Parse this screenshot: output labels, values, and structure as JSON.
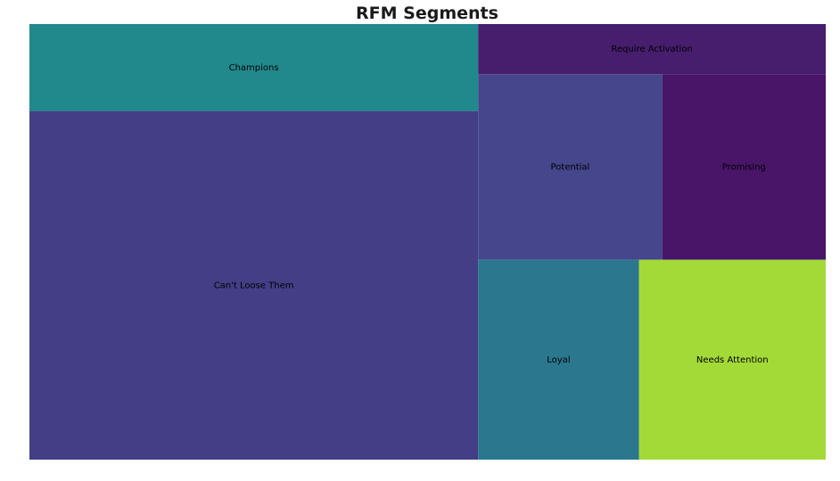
{
  "chart_data": {
    "type": "treemap",
    "title": "RFM Segments",
    "segments": [
      {
        "label": "Can't Loose Them",
        "value": 1840,
        "color": "#433e85"
      },
      {
        "label": "Champions",
        "value": 459,
        "color": "#21898c"
      },
      {
        "label": "Require Activation",
        "value": 205,
        "color": "#471d6e"
      },
      {
        "label": "Potential",
        "value": 402,
        "color": "#45468c"
      },
      {
        "label": "Promising",
        "value": 357,
        "color": "#481568"
      },
      {
        "label": "Loyal",
        "value": 378,
        "color": "#2a778e"
      },
      {
        "label": "Needs Attention",
        "value": 439,
        "color": "#a3da38"
      }
    ]
  }
}
